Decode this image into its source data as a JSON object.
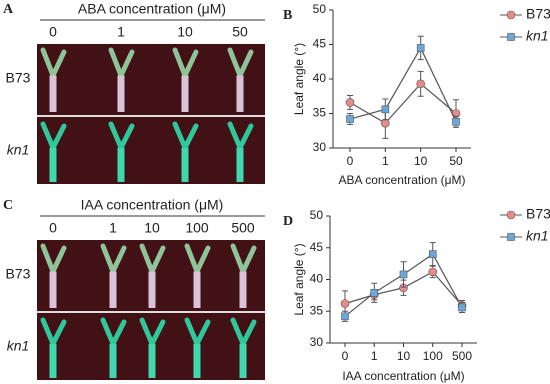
{
  "panels": [
    {
      "letter": "A",
      "title": "ABA concentration (μM)",
      "columns": [
        "0",
        "1",
        "10",
        "50"
      ],
      "rows": [
        "B73",
        "kn1"
      ]
    },
    {
      "letter": "C",
      "title": "IAA concentration (μM)",
      "columns": [
        "0",
        "1",
        "10",
        "100",
        "500"
      ],
      "rows": [
        "B73",
        "kn1"
      ]
    }
  ],
  "chart_data": [
    {
      "type": "line",
      "panel_label": "B",
      "x_label": "ABA concentration (μM)",
      "y_label": "Leaf angle (°)",
      "categories": [
        "0",
        "1",
        "10",
        "50"
      ],
      "ylim": [
        30,
        50
      ],
      "yticks": [
        30,
        35,
        40,
        45,
        50
      ],
      "line_color": "#555555",
      "series": [
        {
          "name": "B73",
          "color": "#e88a8c",
          "marker": "circle",
          "values": [
            36.6,
            33.6,
            39.3,
            35.0
          ],
          "errors": [
            1.0,
            2.2,
            1.8,
            2.0
          ]
        },
        {
          "name": "kn1",
          "color": "#6aa8dc",
          "marker": "square",
          "values": [
            34.2,
            35.6,
            44.5,
            33.8
          ],
          "errors": [
            0.8,
            1.5,
            1.7,
            0.8
          ]
        }
      ]
    },
    {
      "type": "line",
      "panel_label": "D",
      "x_label": "IAA concentration (μM)",
      "y_label": "Leaf angle (°)",
      "categories": [
        "0",
        "1",
        "10",
        "100",
        "500"
      ],
      "ylim": [
        30,
        50
      ],
      "yticks": [
        30,
        35,
        40,
        45,
        50
      ],
      "line_color": "#555555",
      "series": [
        {
          "name": "B73",
          "color": "#e88a8c",
          "marker": "circle",
          "values": [
            36.2,
            37.6,
            38.7,
            41.2,
            35.9
          ],
          "errors": [
            2.0,
            0.8,
            1.2,
            0.9,
            0.8
          ]
        },
        {
          "name": "kn1",
          "color": "#6aa8dc",
          "marker": "square",
          "values": [
            34.2,
            37.9,
            40.8,
            44.0,
            35.6
          ],
          "errors": [
            0.8,
            1.5,
            2.0,
            1.8,
            0.8
          ]
        }
      ]
    }
  ]
}
